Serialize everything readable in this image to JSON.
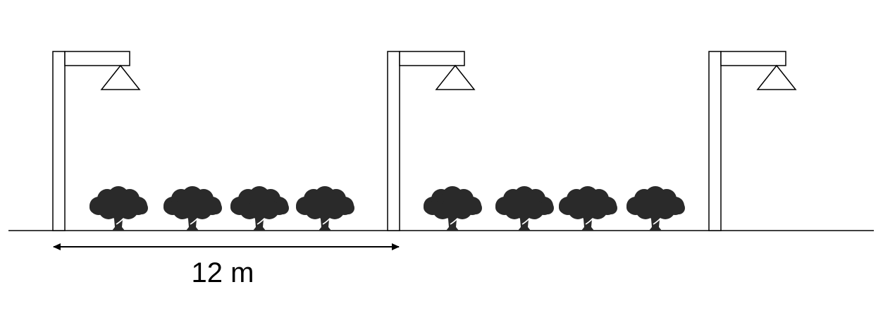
{
  "diagram": {
    "lamp_posts": [
      {
        "name": "lamp-post-1"
      },
      {
        "name": "lamp-post-2"
      },
      {
        "name": "lamp-post-3"
      }
    ],
    "trees": [
      {
        "name": "tree-1"
      },
      {
        "name": "tree-2"
      },
      {
        "name": "tree-3"
      },
      {
        "name": "tree-4"
      },
      {
        "name": "tree-5"
      },
      {
        "name": "tree-6"
      },
      {
        "name": "tree-7"
      },
      {
        "name": "tree-8"
      }
    ],
    "dimension": {
      "label": "12 m"
    },
    "colors": {
      "line": "#000000",
      "tree": "#2a2a2a",
      "background": "#ffffff"
    }
  }
}
